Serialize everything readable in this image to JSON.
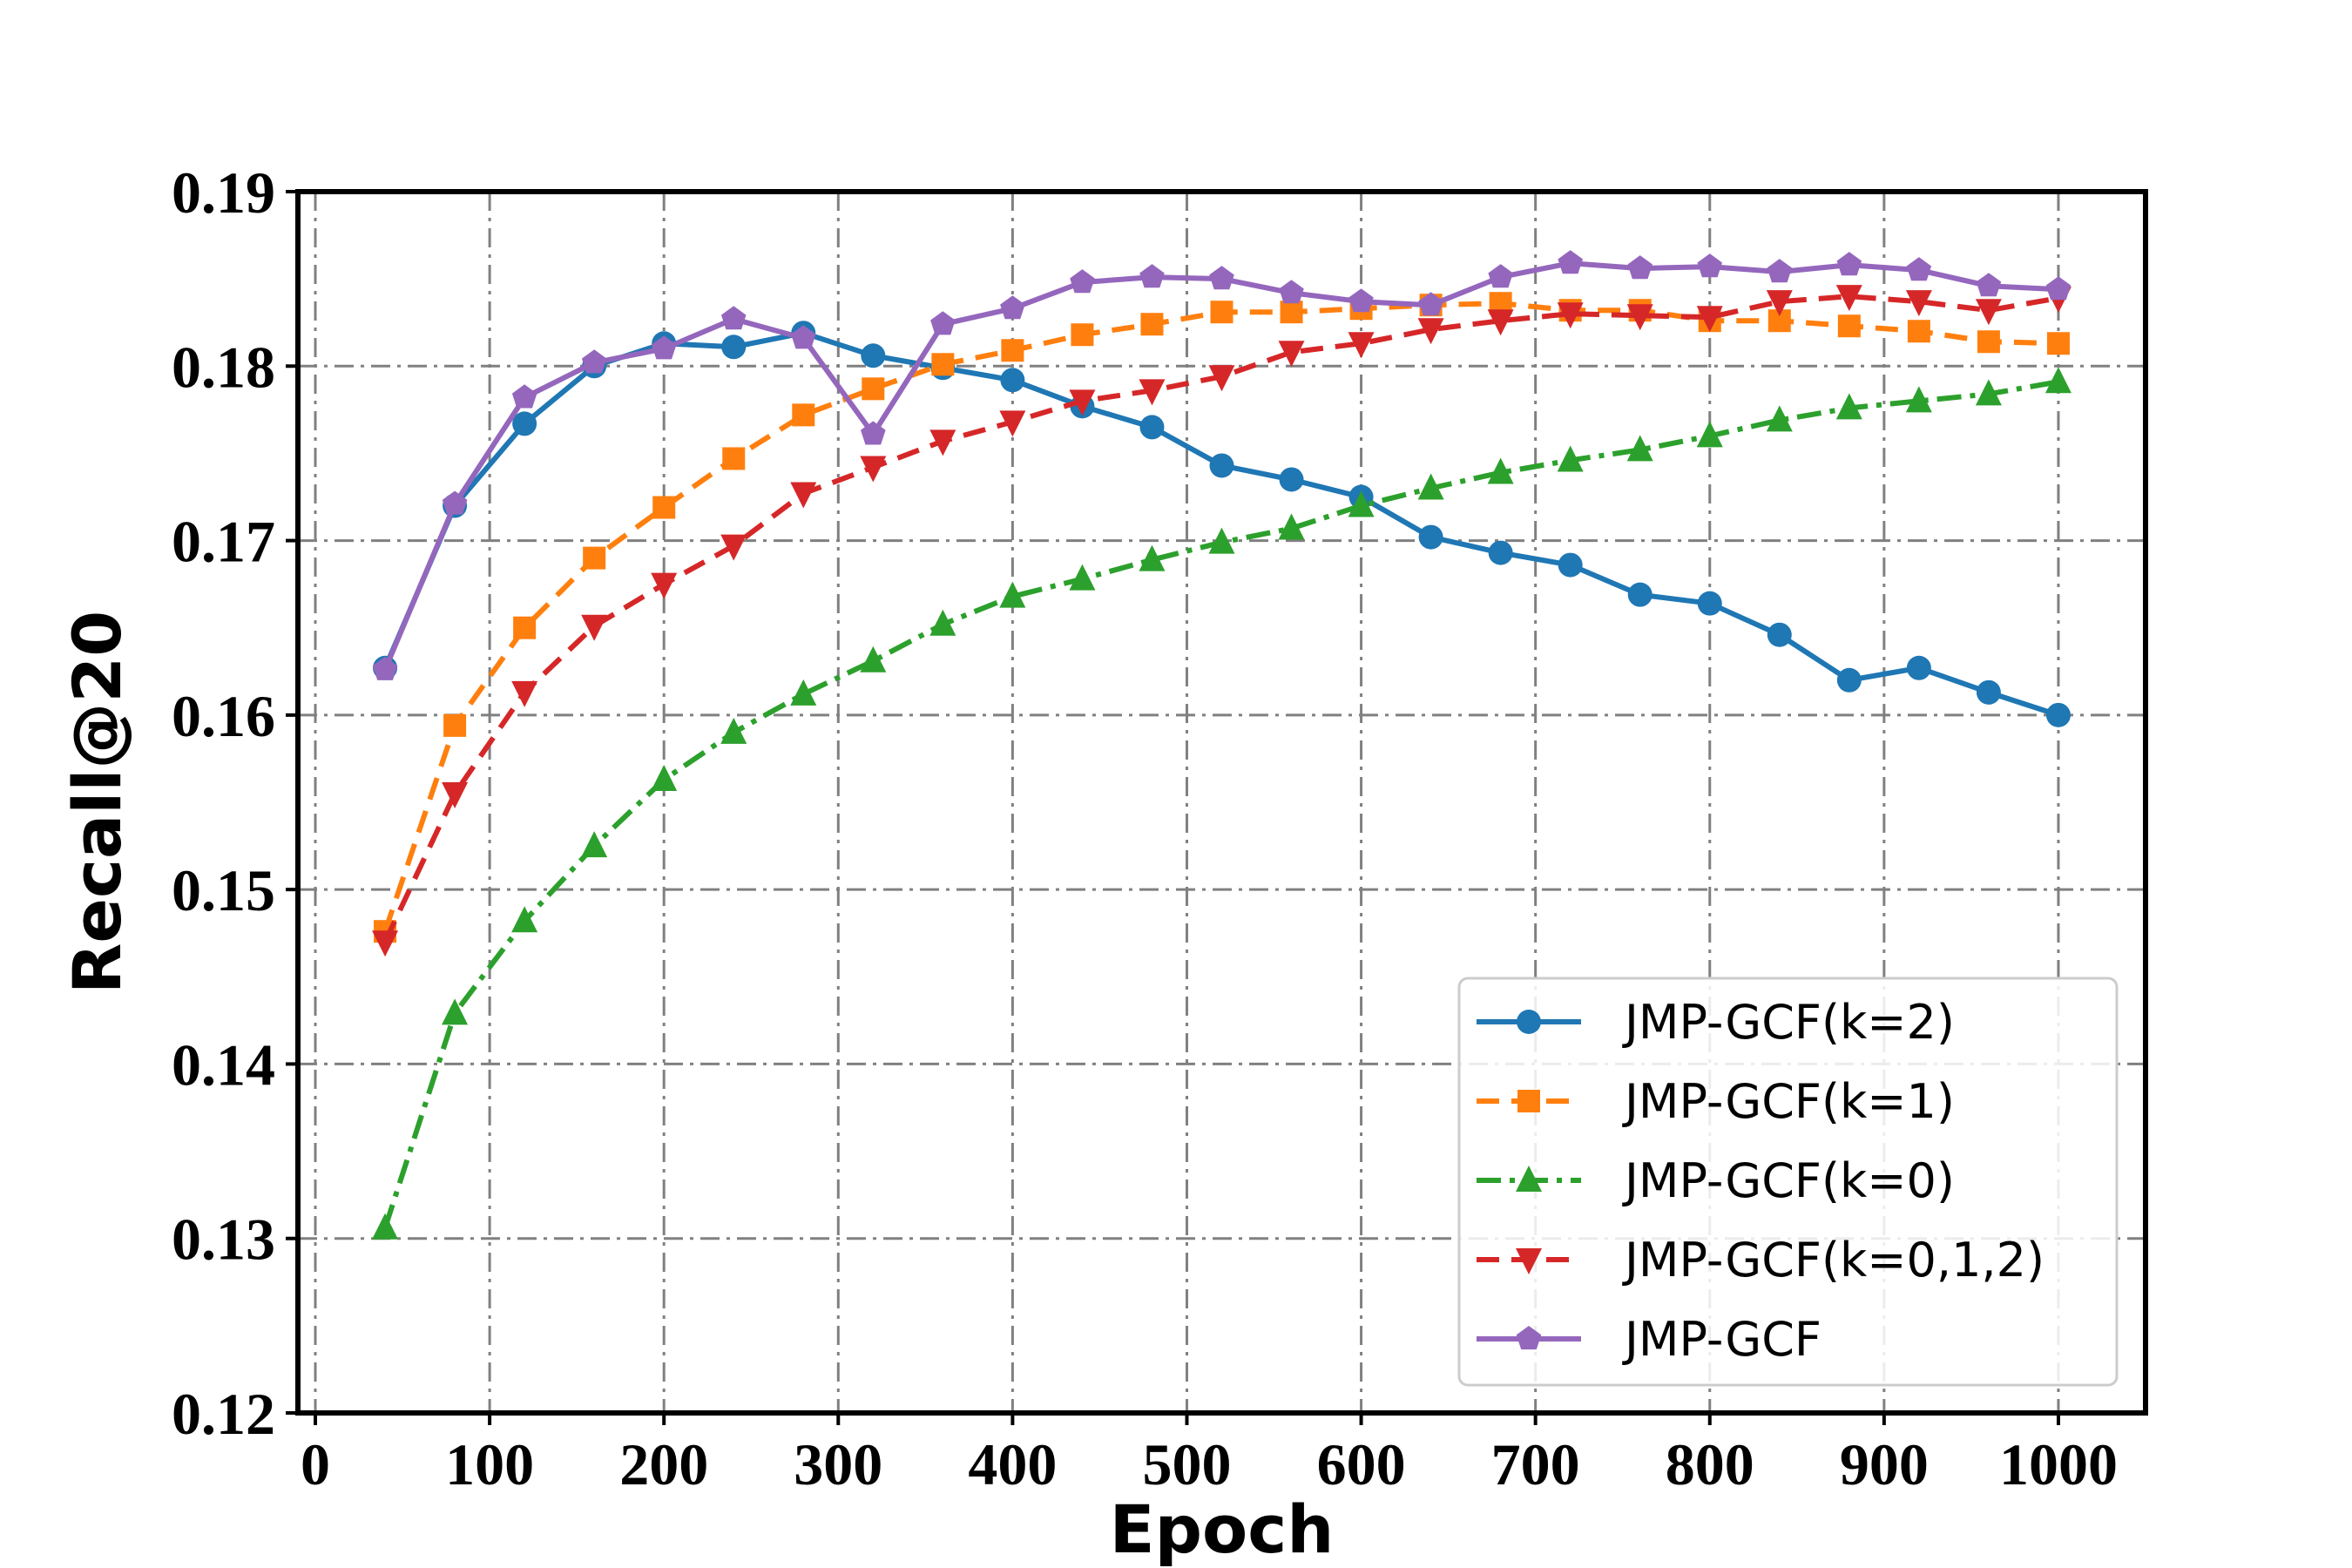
{
  "chart_data": {
    "type": "line",
    "xlabel": "Epoch",
    "ylabel": "Recall@20",
    "xlim": [
      -10,
      1050
    ],
    "ylim": [
      0.12,
      0.19
    ],
    "xticks": [
      0,
      100,
      200,
      300,
      400,
      500,
      600,
      700,
      800,
      900,
      1000
    ],
    "xtick_labels": [
      "0",
      "100",
      "200",
      "300",
      "400",
      "500",
      "600",
      "700",
      "800",
      "900",
      "1000"
    ],
    "yticks": [
      0.12,
      0.13,
      0.14,
      0.15,
      0.16,
      0.17,
      0.18,
      0.19
    ],
    "ytick_labels": [
      "0.12",
      "0.13",
      "0.14",
      "0.15",
      "0.16",
      "0.17",
      "0.18",
      "0.19"
    ],
    "grid": true,
    "legend_position": "lower-right",
    "x": [
      40,
      80,
      120,
      160,
      200,
      240,
      280,
      320,
      360,
      400,
      440,
      480,
      520,
      560,
      600,
      640,
      680,
      720,
      760,
      800,
      840,
      880,
      920,
      960,
      1000
    ],
    "series": [
      {
        "name": "JMP-GCF(k=2)",
        "color": "#1f77b4",
        "dash": "solid",
        "marker": "circle",
        "values": [
          0.1627,
          0.172,
          0.1767,
          0.18,
          0.1813,
          0.1811,
          0.1819,
          0.1806,
          0.1799,
          0.1792,
          0.1777,
          0.1765,
          0.1743,
          0.1735,
          0.1725,
          0.1702,
          0.1693,
          0.1686,
          0.1669,
          0.1664,
          0.1646,
          0.162,
          0.1627,
          0.1613,
          0.16
        ]
      },
      {
        "name": "JMP-GCF(k=1)",
        "color": "#ff7f0e",
        "dash": "dashed",
        "marker": "square",
        "values": [
          0.1476,
          0.1594,
          0.165,
          0.169,
          0.1719,
          0.1747,
          0.1772,
          0.1787,
          0.1801,
          0.1809,
          0.1818,
          0.1824,
          0.1831,
          0.1831,
          0.1833,
          0.1835,
          0.1836,
          0.1832,
          0.1832,
          0.1826,
          0.1826,
          0.1823,
          0.182,
          0.1814,
          0.1813
        ]
      },
      {
        "name": "JMP-GCF(k=0)",
        "color": "#2ca02c",
        "dash": "dashdot",
        "marker": "triangle-up",
        "values": [
          0.1306,
          0.1429,
          0.1482,
          0.1525,
          0.1563,
          0.159,
          0.1612,
          0.1631,
          0.1652,
          0.1668,
          0.1678,
          0.1689,
          0.1699,
          0.1707,
          0.172,
          0.173,
          0.1739,
          0.1746,
          0.1752,
          0.176,
          0.1769,
          0.1776,
          0.178,
          0.1784,
          0.1791
        ]
      },
      {
        "name": "JMP-GCF(k=0,1,2)",
        "color": "#d62728",
        "dash": "dashed",
        "marker": "triangle-down",
        "values": [
          0.147,
          0.1555,
          0.1613,
          0.1651,
          0.1675,
          0.1697,
          0.1727,
          0.1742,
          0.1757,
          0.1768,
          0.178,
          0.1786,
          0.1794,
          0.1808,
          0.1813,
          0.1821,
          0.1826,
          0.183,
          0.1829,
          0.1828,
          0.1837,
          0.184,
          0.1837,
          0.1832,
          0.1839
        ]
      },
      {
        "name": "JMP-GCF",
        "color": "#9467bd",
        "dash": "solid",
        "marker": "pentagon",
        "values": [
          0.1626,
          0.1721,
          0.1782,
          0.1802,
          0.181,
          0.1827,
          0.1816,
          0.1761,
          0.1824,
          0.1833,
          0.1848,
          0.1851,
          0.185,
          0.1842,
          0.1837,
          0.1835,
          0.1851,
          0.1859,
          0.1856,
          0.1857,
          0.1854,
          0.1858,
          0.1855,
          0.1846,
          0.1844
        ]
      }
    ]
  }
}
